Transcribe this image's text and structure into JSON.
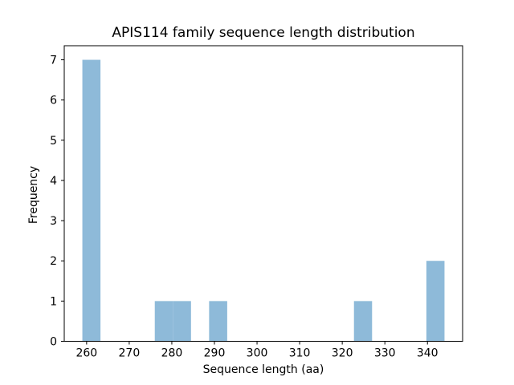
{
  "figure": {
    "background": "#ffffff",
    "bar_color": "#8EBAD9",
    "axis_color": "#000000",
    "text_color": "#000000"
  },
  "chart_data": {
    "type": "bar",
    "subtype": "histogram",
    "title": "APIS114 family sequence length distribution",
    "xlabel": "Sequence length (aa)",
    "ylabel": "Frequency",
    "xlim": [
      254.75,
      348.25
    ],
    "ylim": [
      0,
      7.35
    ],
    "xticks": [
      260,
      270,
      280,
      290,
      300,
      310,
      320,
      330,
      340
    ],
    "yticks": [
      0,
      1,
      2,
      3,
      4,
      5,
      6,
      7
    ],
    "grid": false,
    "legend_position": "none",
    "bins": [
      {
        "x0": 259.0,
        "x1": 263.25,
        "count": 7
      },
      {
        "x0": 276.0,
        "x1": 280.25,
        "count": 1
      },
      {
        "x0": 280.25,
        "x1": 284.5,
        "count": 1
      },
      {
        "x0": 288.75,
        "x1": 293.0,
        "count": 1
      },
      {
        "x0": 322.75,
        "x1": 327.0,
        "count": 1
      },
      {
        "x0": 339.75,
        "x1": 344.0,
        "count": 2
      }
    ]
  }
}
